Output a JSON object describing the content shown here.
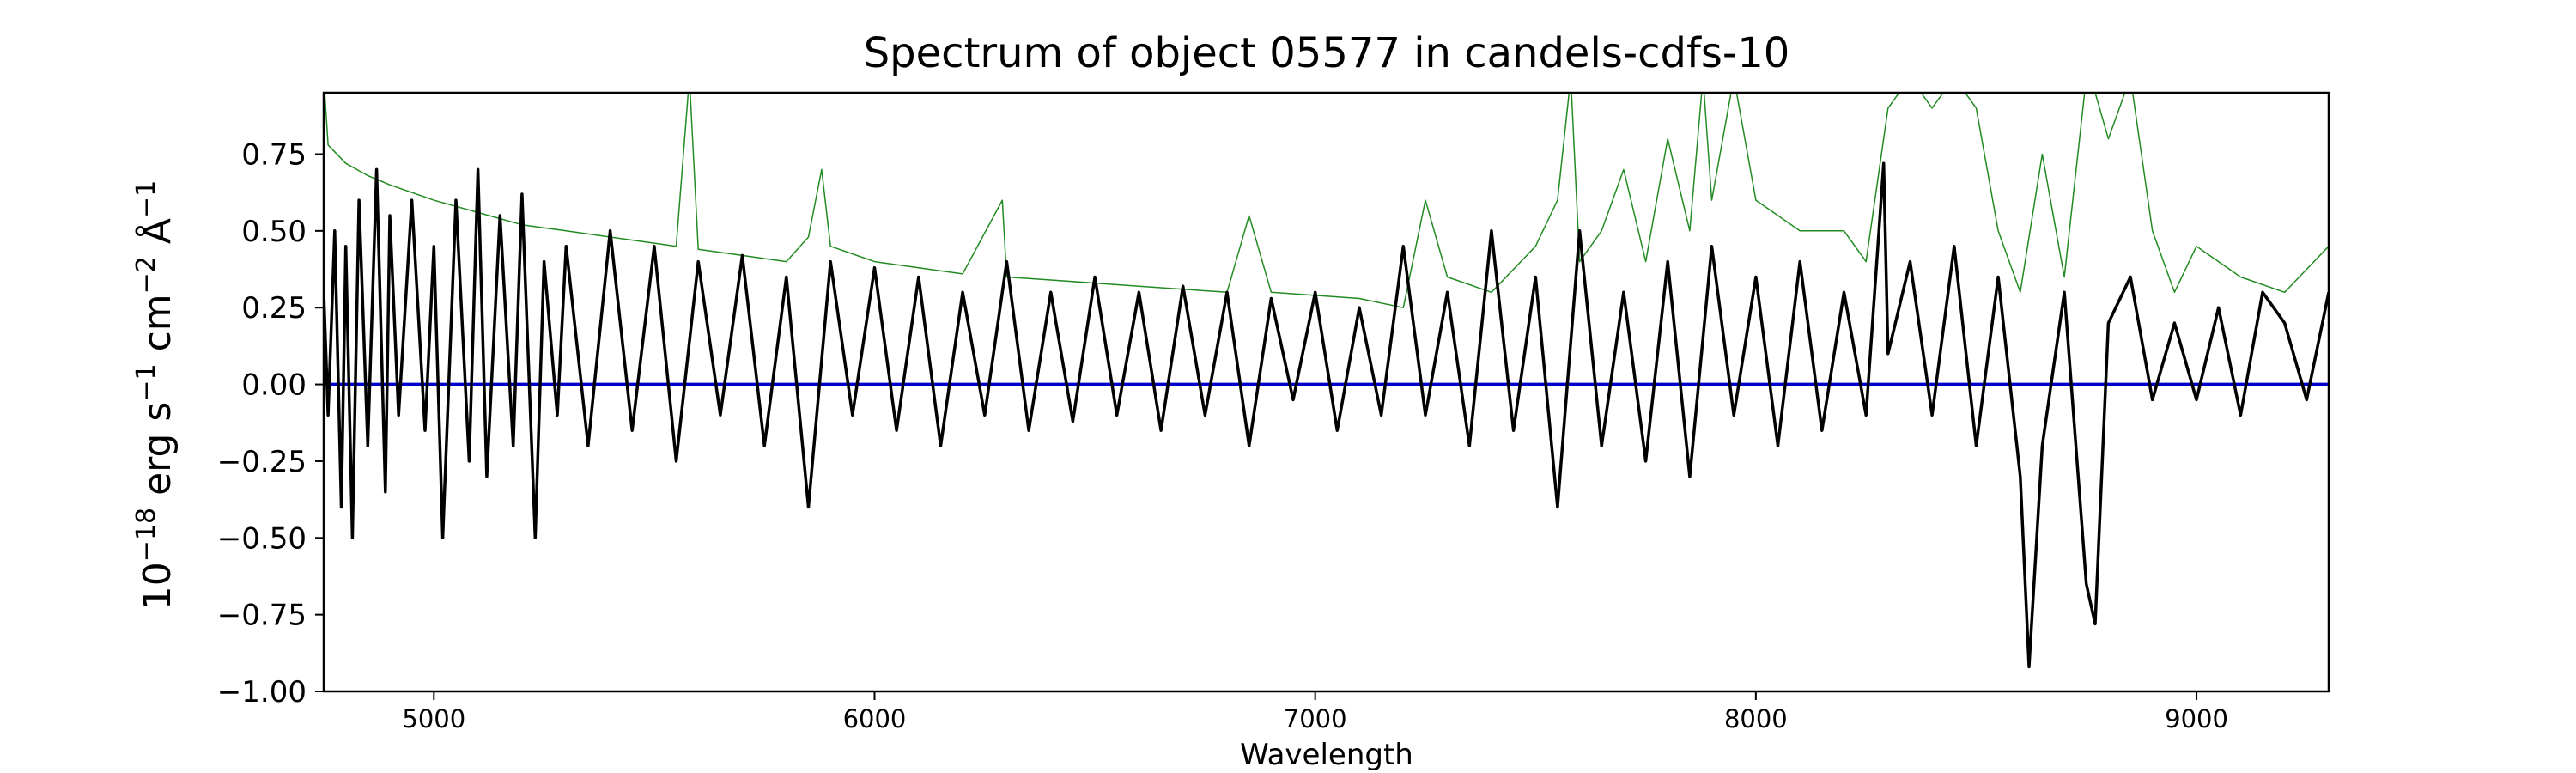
{
  "chart_data": {
    "type": "line",
    "title": "Spectrum of object 05577 in candels-cdfs-10",
    "xlabel": "Wavelength",
    "ylabel_parts": {
      "base": "10",
      "exp1": "−18",
      "unit1": " erg s",
      "exp2": "−1",
      "unit2": " cm",
      "exp3": "−2",
      "unit3": " Å",
      "exp4": "−1"
    },
    "xlim": [
      4750,
      9300
    ],
    "ylim": [
      -1.0,
      0.95
    ],
    "x_ticks": [
      5000,
      6000,
      7000,
      8000,
      9000
    ],
    "x_tick_labels": [
      "5000",
      "6000",
      "7000",
      "8000",
      "9000"
    ],
    "y_ticks": [
      -1.0,
      -0.75,
      -0.5,
      -0.25,
      0.0,
      0.25,
      0.5,
      0.75
    ],
    "y_tick_labels": [
      "−1.00",
      "−0.75",
      "−0.50",
      "−0.25",
      "0.00",
      "0.25",
      "0.50",
      "0.75"
    ],
    "grid": false,
    "legend": "none",
    "colors": {
      "flux": "#000000",
      "error": "#228B22",
      "zero": "#0000CD"
    },
    "series": [
      {
        "role": "flux",
        "x": [
          4750,
          4760,
          4775,
          4790,
          4800,
          4815,
          4830,
          4850,
          4870,
          4890,
          4900,
          4920,
          4950,
          4980,
          5000,
          5020,
          5050,
          5080,
          5100,
          5120,
          5150,
          5180,
          5200,
          5230,
          5250,
          5280,
          5300,
          5350,
          5400,
          5450,
          5500,
          5550,
          5600,
          5650,
          5700,
          5750,
          5800,
          5850,
          5900,
          5950,
          6000,
          6050,
          6100,
          6150,
          6200,
          6250,
          6300,
          6350,
          6400,
          6450,
          6500,
          6550,
          6600,
          6650,
          6700,
          6750,
          6800,
          6850,
          6900,
          6950,
          7000,
          7050,
          7100,
          7150,
          7200,
          7250,
          7300,
          7350,
          7400,
          7450,
          7500,
          7550,
          7600,
          7650,
          7700,
          7750,
          7800,
          7850,
          7900,
          7950,
          8000,
          8050,
          8100,
          8150,
          8200,
          8250,
          8290,
          8300,
          8350,
          8400,
          8450,
          8500,
          8550,
          8600,
          8620,
          8650,
          8700,
          8750,
          8770,
          8800,
          8850,
          8900,
          8950,
          9000,
          9050,
          9100,
          9150,
          9200,
          9250,
          9300
        ],
        "y": [
          0.3,
          -0.1,
          0.5,
          -0.4,
          0.45,
          -0.5,
          0.6,
          -0.2,
          0.7,
          -0.35,
          0.55,
          -0.1,
          0.6,
          -0.15,
          0.45,
          -0.5,
          0.6,
          -0.25,
          0.7,
          -0.3,
          0.55,
          -0.2,
          0.62,
          -0.5,
          0.4,
          -0.1,
          0.45,
          -0.2,
          0.5,
          -0.15,
          0.45,
          -0.25,
          0.4,
          -0.1,
          0.42,
          -0.2,
          0.35,
          -0.4,
          0.4,
          -0.1,
          0.38,
          -0.15,
          0.35,
          -0.2,
          0.3,
          -0.1,
          0.4,
          -0.15,
          0.3,
          -0.12,
          0.35,
          -0.1,
          0.3,
          -0.15,
          0.32,
          -0.1,
          0.3,
          -0.2,
          0.28,
          -0.05,
          0.3,
          -0.15,
          0.25,
          -0.1,
          0.45,
          -0.1,
          0.3,
          -0.2,
          0.5,
          -0.15,
          0.35,
          -0.4,
          0.5,
          -0.2,
          0.3,
          -0.25,
          0.4,
          -0.3,
          0.45,
          -0.1,
          0.35,
          -0.2,
          0.4,
          -0.15,
          0.3,
          -0.1,
          0.72,
          0.1,
          0.4,
          -0.1,
          0.45,
          -0.2,
          0.35,
          -0.3,
          -0.92,
          -0.2,
          0.3,
          -0.65,
          -0.78,
          0.2,
          0.35,
          -0.05,
          0.2,
          -0.05,
          0.25,
          -0.1,
          0.3,
          0.2,
          -0.05,
          0.3
        ]
      },
      {
        "role": "error",
        "x": [
          4750,
          4760,
          4800,
          4850,
          4900,
          5000,
          5100,
          5200,
          5300,
          5400,
          5500,
          5550,
          5580,
          5600,
          5700,
          5800,
          5850,
          5880,
          5900,
          6000,
          6100,
          6200,
          6290,
          6300,
          6400,
          6500,
          6600,
          6700,
          6800,
          6850,
          6900,
          7000,
          7100,
          7200,
          7250,
          7300,
          7400,
          7500,
          7550,
          7580,
          7600,
          7650,
          7700,
          7750,
          7800,
          7850,
          7880,
          7900,
          7950,
          8000,
          8100,
          8200,
          8250,
          8300,
          8350,
          8400,
          8450,
          8500,
          8550,
          8600,
          8650,
          8700,
          8750,
          8760,
          8800,
          8850,
          8900,
          8950,
          9000,
          9100,
          9200,
          9300
        ],
        "y": [
          1.0,
          0.78,
          0.72,
          0.68,
          0.65,
          0.6,
          0.56,
          0.52,
          0.5,
          0.48,
          0.46,
          0.45,
          1.0,
          0.44,
          0.42,
          0.4,
          0.48,
          0.7,
          0.45,
          0.4,
          0.38,
          0.36,
          0.6,
          0.35,
          0.34,
          0.33,
          0.32,
          0.31,
          0.3,
          0.55,
          0.3,
          0.29,
          0.28,
          0.25,
          0.6,
          0.35,
          0.3,
          0.45,
          0.6,
          1.0,
          0.4,
          0.5,
          0.7,
          0.4,
          0.8,
          0.5,
          1.0,
          0.6,
          1.0,
          0.6,
          0.5,
          0.5,
          0.4,
          0.9,
          1.0,
          0.9,
          1.0,
          0.9,
          0.5,
          0.3,
          0.75,
          0.35,
          1.0,
          1.0,
          0.8,
          1.0,
          0.5,
          0.3,
          0.45,
          0.35,
          0.3,
          0.45
        ]
      },
      {
        "role": "zero",
        "x": [
          4750,
          9300
        ],
        "y": [
          0.0,
          0.0
        ]
      }
    ]
  }
}
